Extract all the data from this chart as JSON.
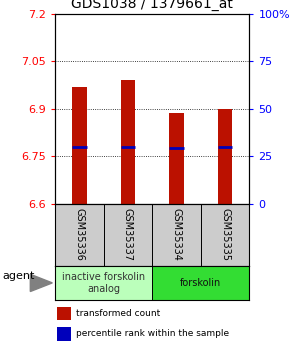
{
  "title": "GDS1038 / 1379661_at",
  "samples": [
    "GSM35336",
    "GSM35337",
    "GSM35334",
    "GSM35335"
  ],
  "bar_bottoms": [
    6.6,
    6.6,
    6.6,
    6.6
  ],
  "bar_tops": [
    6.97,
    6.99,
    6.885,
    6.9
  ],
  "percentile_values": [
    6.778,
    6.779,
    6.776,
    6.778
  ],
  "ylim": [
    6.6,
    7.2
  ],
  "yticks_left": [
    6.6,
    6.75,
    6.9,
    7.05,
    7.2
  ],
  "ytick_right_labels": [
    "0",
    "25",
    "50",
    "75",
    "100%"
  ],
  "bar_color": "#bb1100",
  "percentile_color": "#0000bb",
  "groups": [
    {
      "label": "inactive forskolin\nanalog",
      "span": [
        0,
        2
      ],
      "color": "#bbffbb",
      "text_color": "#333333"
    },
    {
      "label": "forskolin",
      "span": [
        2,
        4
      ],
      "color": "#33dd33",
      "text_color": "#111111"
    }
  ],
  "agent_label": "agent",
  "legend_red_label": "transformed count",
  "legend_blue_label": "percentile rank within the sample",
  "bar_width": 0.3,
  "title_fontsize": 10,
  "tick_fontsize": 8,
  "sample_label_fontsize": 7,
  "group_fontsize": 7,
  "legend_fontsize": 6.5
}
